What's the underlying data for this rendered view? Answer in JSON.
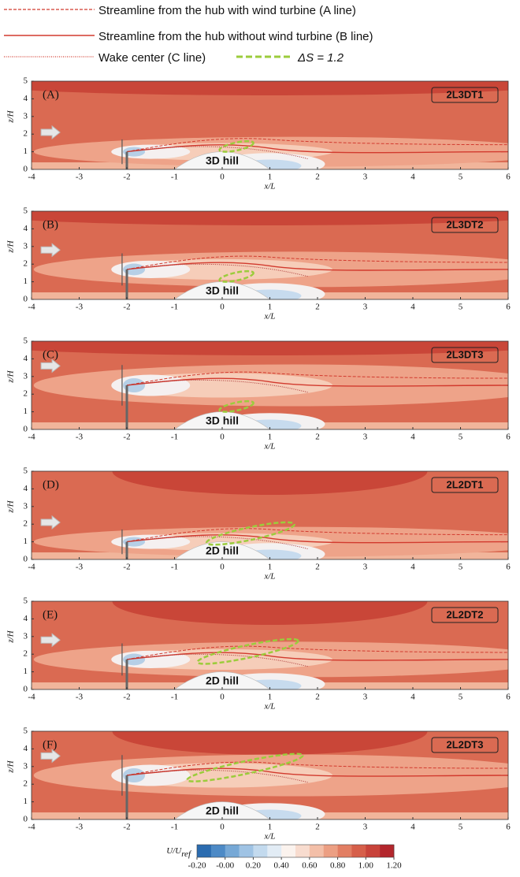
{
  "legend": [
    "Streamline from the hub with wind turbine (A line)",
    "Streamline from the hub without wind turbine (B line)",
    "Wake center (C line)",
    "ΔS = 1.2"
  ],
  "chart_data": [
    {
      "type": "contour",
      "panel_label": "(A)",
      "title": "2L3DT1",
      "annotation": "3D hill",
      "xlabel": "x/L",
      "ylabel": "z/H",
      "xlim": [
        -4,
        6
      ],
      "ylim": [
        0,
        5
      ],
      "xticks": [
        -4,
        -3,
        -2,
        -1,
        0,
        1,
        2,
        3,
        4,
        5,
        6
      ],
      "yticks": [
        0,
        1,
        2,
        3,
        4,
        5
      ]
    },
    {
      "type": "contour",
      "panel_label": "(B)",
      "title": "2L3DT2",
      "annotation": "3D hill",
      "xlabel": "x/L",
      "ylabel": "z/H",
      "xlim": [
        -4,
        6
      ],
      "ylim": [
        0,
        5
      ],
      "xticks": [
        -4,
        -3,
        -2,
        -1,
        0,
        1,
        2,
        3,
        4,
        5,
        6
      ],
      "yticks": [
        0,
        1,
        2,
        3,
        4,
        5
      ]
    },
    {
      "type": "contour",
      "panel_label": "(C)",
      "title": "2L3DT3",
      "annotation": "3D hill",
      "xlabel": "x/L",
      "ylabel": "z/H",
      "xlim": [
        -4,
        6
      ],
      "ylim": [
        0,
        5
      ],
      "xticks": [
        -4,
        -3,
        -2,
        -1,
        0,
        1,
        2,
        3,
        4,
        5,
        6
      ],
      "yticks": [
        0,
        1,
        2,
        3,
        4,
        5
      ]
    },
    {
      "type": "contour",
      "panel_label": "(D)",
      "title": "2L2DT1",
      "annotation": "2D hill",
      "xlabel": "x/L",
      "ylabel": "z/H",
      "xlim": [
        -4,
        6
      ],
      "ylim": [
        0,
        5
      ],
      "xticks": [
        -4,
        -3,
        -2,
        -1,
        0,
        1,
        2,
        3,
        4,
        5,
        6
      ],
      "yticks": [
        0,
        1,
        2,
        3,
        4,
        5
      ]
    },
    {
      "type": "contour",
      "panel_label": "(E)",
      "title": "2L2DT2",
      "annotation": "2D hill",
      "xlabel": "x/L",
      "ylabel": "z/H",
      "xlim": [
        -4,
        6
      ],
      "ylim": [
        0,
        5
      ],
      "xticks": [
        -4,
        -3,
        -2,
        -1,
        0,
        1,
        2,
        3,
        4,
        5,
        6
      ],
      "yticks": [
        0,
        1,
        2,
        3,
        4,
        5
      ]
    },
    {
      "type": "contour",
      "panel_label": "(F)",
      "title": "2L2DT3",
      "annotation": "2D hill",
      "xlabel": "x/L",
      "ylabel": "z/H",
      "xlim": [
        -4,
        6
      ],
      "ylim": [
        0,
        5
      ],
      "xticks": [
        -4,
        -3,
        -2,
        -1,
        0,
        1,
        2,
        3,
        4,
        5,
        6
      ],
      "yticks": [
        0,
        1,
        2,
        3,
        4,
        5
      ]
    },
    {
      "type": "colorbar",
      "label": {
        "main": "U/U",
        "sub": "ref"
      },
      "lim": [
        -0.2,
        1.2
      ],
      "ticks": [
        {
          "value": -0.2,
          "label": "-0.20"
        },
        {
          "value": 0,
          "label": "-0.00"
        },
        {
          "value": 0.2,
          "label": "0.20"
        },
        {
          "value": 0.4,
          "label": "0.40"
        },
        {
          "value": 0.6,
          "label": "0.60"
        },
        {
          "value": 0.8,
          "label": "0.80"
        },
        {
          "value": 1.0,
          "label": "1.00"
        },
        {
          "value": 1.2,
          "label": "1.20"
        }
      ],
      "colors": [
        "#2b6cb0",
        "#4d8ac6",
        "#76a8d6",
        "#9fc3e4",
        "#c3daee",
        "#e2ecf5",
        "#fbf3ee",
        "#f8dccf",
        "#f3bfa8",
        "#ec9f83",
        "#e27e63",
        "#d65f4a",
        "#c8433a",
        "#b3262c"
      ]
    }
  ]
}
